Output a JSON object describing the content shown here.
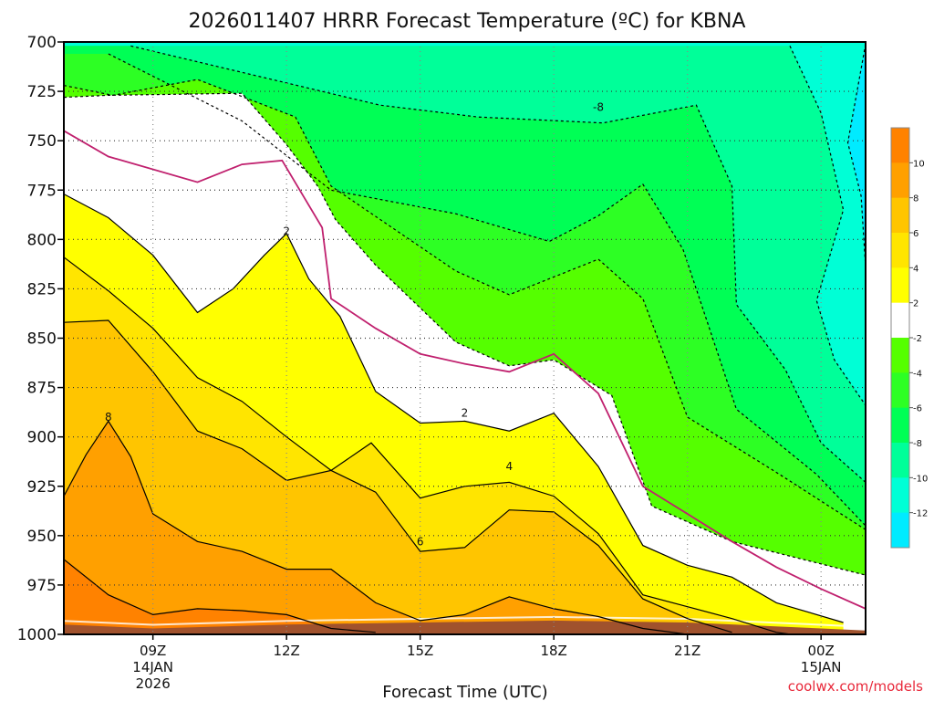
{
  "title": "2026011407 HRRR Forecast Temperature (ºC) for KBNA",
  "watermark": "coolwx.com/models",
  "colors": {
    "c_lt_m12": "#00ebff",
    "c_m12_m10": "#00ffd6",
    "c_m10_m8": "#00ff99",
    "c_m8_m6": "#00ff55",
    "c_m6_m4": "#2dff24",
    "c_m4_m2": "#55ff00",
    "c_m2_2": "#ffffff",
    "c_2_4": "#ffff00",
    "c_4_6": "#ffe500",
    "c_6_8": "#ffc500",
    "c_8_10": "#ffa000",
    "c_gt_10": "#ff8200",
    "ground": "#a0522d",
    "freezing_line": "#c0206e"
  },
  "chart_data": {
    "type": "contour",
    "title": "2026011407 HRRR Forecast Temperature (ºC) for KBNA",
    "xlabel": "Forecast Time (UTC)",
    "ylabel": "",
    "x_ticks": [
      {
        "label": "09Z",
        "date": "14JAN",
        "year": "2026"
      },
      {
        "label": "12Z",
        "date": "",
        "year": ""
      },
      {
        "label": "15Z",
        "date": "",
        "year": ""
      },
      {
        "label": "18Z",
        "date": "",
        "year": ""
      },
      {
        "label": "21Z",
        "date": "",
        "year": ""
      },
      {
        "label": "00Z",
        "date": "15JAN",
        "year": ""
      }
    ],
    "x_range_hours": [
      7,
      25
    ],
    "y_ticks": [
      "700",
      "725",
      "750",
      "775",
      "800",
      "825",
      "850",
      "875",
      "900",
      "925",
      "950",
      "975",
      "1000"
    ],
    "y_range_hPa": [
      700,
      1000
    ],
    "y_direction": "pressure increasing downward",
    "grid": true,
    "colorbar": {
      "levels": [
        "10",
        "8",
        "6",
        "4",
        "2",
        "-2",
        "-4",
        "-6",
        "-8",
        "-10",
        "-12"
      ],
      "units": "ºC"
    },
    "contour_labels": [
      {
        "text": "-8",
        "hour": 19.0,
        "hPa": 733
      },
      {
        "text": "2",
        "hour": 12.0,
        "hPa": 796
      },
      {
        "text": "2",
        "hour": 16.0,
        "hPa": 888
      },
      {
        "text": "4",
        "hour": 17.0,
        "hPa": 915
      },
      {
        "text": "6",
        "hour": 15.0,
        "hPa": 953
      },
      {
        "text": "8",
        "hour": 8.0,
        "hPa": 890
      }
    ],
    "isotherms": [
      {
        "value": "-12",
        "hours": [
          25,
          24.6,
          24.9,
          25
        ],
        "hPa": [
          701,
          751,
          778,
          814
        ]
      },
      {
        "value": "-10",
        "hours": [
          23.3,
          24.0,
          24.5,
          23.9,
          24.3,
          25
        ],
        "hPa": [
          702,
          736,
          785,
          831,
          861,
          884
        ]
      },
      {
        "value": "-8",
        "hours": [
          8.5,
          14.1,
          16.3,
          19.1,
          21.2,
          22.0,
          22.1,
          23.2,
          24.0,
          25
        ],
        "hPa": [
          702,
          732,
          738,
          741,
          732,
          773,
          833,
          866,
          903,
          923
        ]
      },
      {
        "value": "-6",
        "hours": [
          8.0,
          11.0,
          13.0,
          15.8,
          17.9,
          19.0,
          20.0,
          20.9,
          22.1,
          23.9,
          25
        ],
        "hPa": [
          706,
          740,
          775,
          787,
          801,
          788,
          772,
          805,
          886,
          919,
          945
        ]
      },
      {
        "value": "-4",
        "hours": [
          7.0,
          8.1,
          10.0,
          12.2,
          13.0,
          15.8,
          17.0,
          19.0,
          20.0,
          21.0,
          23.0,
          25
        ],
        "hPa": [
          722,
          727,
          719,
          738,
          773,
          816,
          828,
          810,
          830,
          890,
          918,
          947
        ]
      },
      {
        "value": "-2",
        "hours": [
          7.0,
          8.0,
          11.0,
          12.0,
          12.7,
          13.1,
          14.0,
          15.8,
          17.0,
          18.0,
          19.3,
          20.2,
          22.0,
          25
        ],
        "hPa": [
          728,
          727,
          726,
          752,
          773,
          790,
          813,
          852,
          864,
          861,
          879,
          935,
          953,
          970
        ]
      },
      {
        "value": "0",
        "hours": [
          7.0,
          8.0,
          10.0,
          11.0,
          11.9,
          12.8,
          13.0,
          14.0,
          15.0,
          16.0,
          17.0,
          18.0,
          19.0,
          20.0,
          21.0,
          22.0,
          23.0,
          24.0,
          25
        ],
        "hPa": [
          745,
          758,
          771,
          762,
          760,
          794,
          830,
          845,
          858,
          863,
          867,
          858,
          878,
          925,
          939,
          953,
          966,
          977,
          987
        ]
      },
      {
        "value": "2",
        "hours": [
          7.0,
          8.0,
          9.0,
          10.0,
          10.8,
          11.5,
          12.0,
          12.5,
          13.2,
          14.0,
          15.0,
          16.0,
          17.0,
          18.0,
          19.0,
          20.0,
          21.0,
          22.0,
          23.0,
          24.5
        ],
        "hPa": [
          777,
          789,
          808,
          837,
          825,
          808,
          797,
          820,
          839,
          877,
          893,
          892,
          897,
          888,
          915,
          955,
          965,
          971,
          984,
          994
        ]
      },
      {
        "value": "4",
        "hours": [
          7.0,
          8.0,
          9.0,
          10.0,
          11.0,
          12.0,
          13.0,
          13.9,
          15.0,
          16.0,
          17.0,
          18.0,
          19.0,
          20.0,
          21.0,
          22.0,
          23.0,
          24.0
        ],
        "hPa": [
          809,
          826,
          845,
          870,
          882,
          900,
          917,
          903,
          931,
          925,
          923,
          930,
          949,
          980,
          986,
          992,
          999,
          1002
        ]
      },
      {
        "value": "6",
        "hours": [
          7.0,
          8.0,
          9.0,
          10.0,
          11.0,
          12.0,
          13.0,
          14.0,
          15.0,
          16.0,
          17.0,
          18.0,
          19.0,
          20.0,
          21.0,
          22.0
        ],
        "hPa": [
          842,
          841,
          867,
          897,
          906,
          922,
          917,
          928,
          958,
          956,
          937,
          938,
          955,
          982,
          992,
          999
        ]
      },
      {
        "value": "8",
        "hours": [
          7.0,
          7.5,
          8.0,
          8.5,
          9.0,
          10.0,
          11.0,
          12.0,
          13.0,
          14.0,
          15.0,
          16.0,
          17.0,
          18.0,
          19.0,
          20.0,
          21.0
        ],
        "hPa": [
          930,
          909,
          892,
          910,
          939,
          953,
          958,
          967,
          967,
          984,
          993,
          990,
          981,
          987,
          991,
          997,
          1000
        ]
      },
      {
        "value": "10",
        "hours": [
          7.0,
          8.0,
          9.0,
          10.0,
          11.0,
          12.0,
          13.0,
          14.0
        ],
        "hPa": [
          962,
          980,
          990,
          987,
          988,
          990,
          997,
          999
        ]
      }
    ],
    "ground_surface": {
      "hours": [
        7,
        9,
        12,
        15,
        18,
        21,
        24,
        25
      ],
      "hPa": [
        995,
        997,
        995,
        994,
        993,
        994,
        997,
        998
      ]
    }
  }
}
